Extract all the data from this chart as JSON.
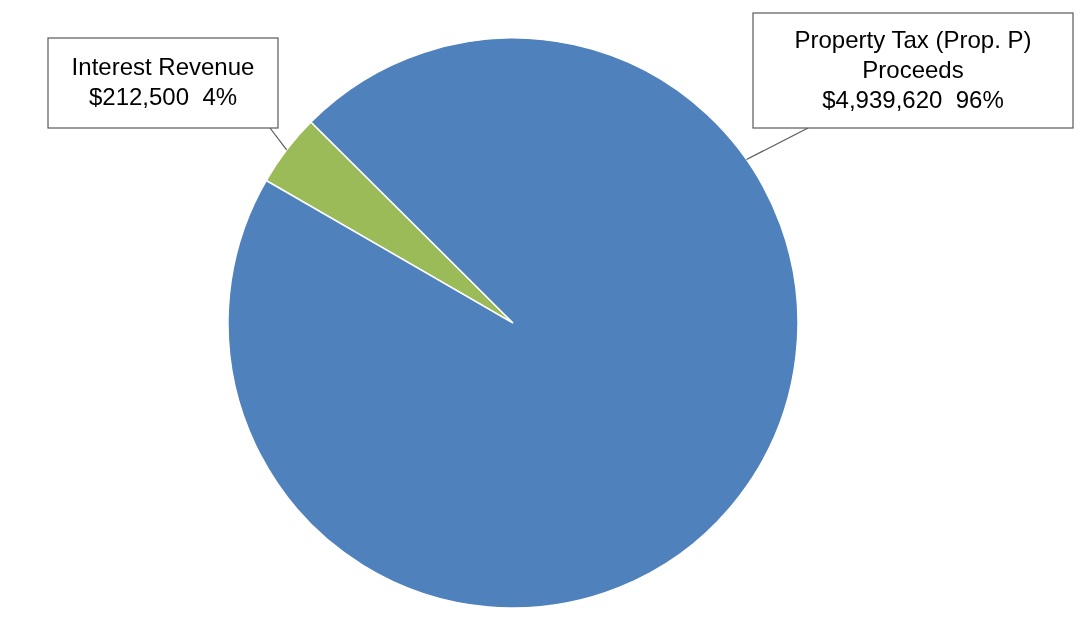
{
  "chart_data": {
    "type": "pie",
    "categories": [
      "Interest Revenue",
      "Property Tax (Prop. P) Proceeds"
    ],
    "values": [
      212500,
      4939620
    ],
    "colors": [
      "#9bbb59",
      "#4f81bd"
    ],
    "value_labels": [
      "$212,500  4%",
      "$4,939,620  96%"
    ]
  }
}
